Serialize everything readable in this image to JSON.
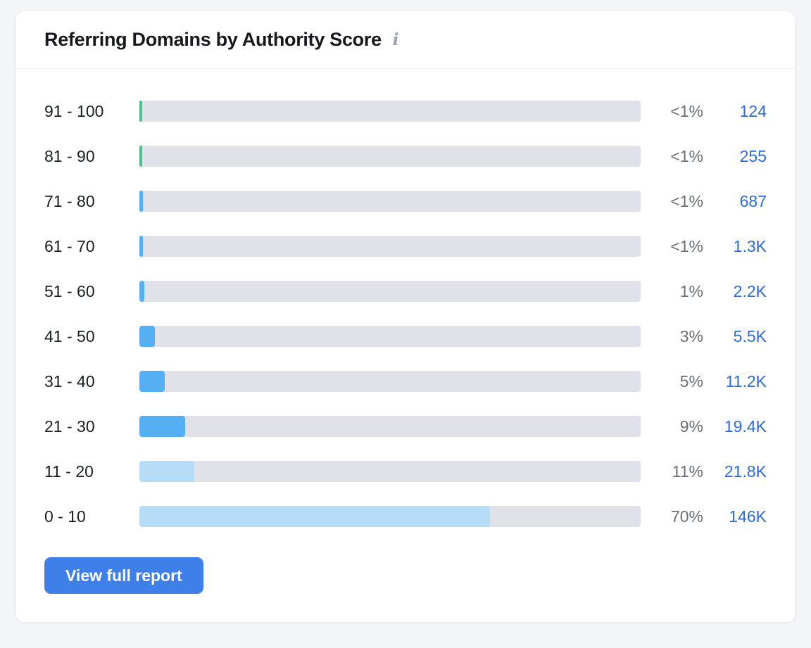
{
  "card": {
    "title": "Referring Domains by Authority Score",
    "info_icon": "i",
    "button_label": "View full report"
  },
  "colors": {
    "green": "#4dbe8e",
    "blue": "#56aef3",
    "light_blue": "#b7dcf8",
    "track": "#e1e2e9",
    "count_link": "#2b6cd8",
    "percent_text": "#6a6e78",
    "button": "#3f7fea"
  },
  "chart_data": {
    "type": "bar",
    "orientation": "horizontal",
    "title": "Referring Domains by Authority Score",
    "categories": [
      "91 - 100",
      "81 - 90",
      "71 - 80",
      "61 - 70",
      "51 - 60",
      "41 - 50",
      "31 - 40",
      "21 - 30",
      "11 - 20",
      "0 - 10"
    ],
    "xlim_percent": [
      0,
      100
    ],
    "grid": false,
    "legend": false,
    "rows": [
      {
        "label": "91 - 100",
        "percent": "<1%",
        "count": "124",
        "fill_pct": 0.6,
        "color": "green"
      },
      {
        "label": "81 - 90",
        "percent": "<1%",
        "count": "255",
        "fill_pct": 0.6,
        "color": "green"
      },
      {
        "label": "71 - 80",
        "percent": "<1%",
        "count": "687",
        "fill_pct": 0.7,
        "color": "blue"
      },
      {
        "label": "61 - 70",
        "percent": "<1%",
        "count": "1.3K",
        "fill_pct": 0.7,
        "color": "blue"
      },
      {
        "label": "51 - 60",
        "percent": "1%",
        "count": "2.2K",
        "fill_pct": 1.0,
        "color": "blue"
      },
      {
        "label": "41 - 50",
        "percent": "3%",
        "count": "5.5K",
        "fill_pct": 3.1,
        "color": "blue"
      },
      {
        "label": "31 - 40",
        "percent": "5%",
        "count": "11.2K",
        "fill_pct": 5.0,
        "color": "blue"
      },
      {
        "label": "21 - 30",
        "percent": "9%",
        "count": "19.4K",
        "fill_pct": 9.1,
        "color": "blue"
      },
      {
        "label": "11 - 20",
        "percent": "11%",
        "count": "21.8K",
        "fill_pct": 10.9,
        "color": "light_blue"
      },
      {
        "label": "0 - 10",
        "percent": "70%",
        "count": "146K",
        "fill_pct": 70.0,
        "color": "light_blue"
      }
    ]
  }
}
